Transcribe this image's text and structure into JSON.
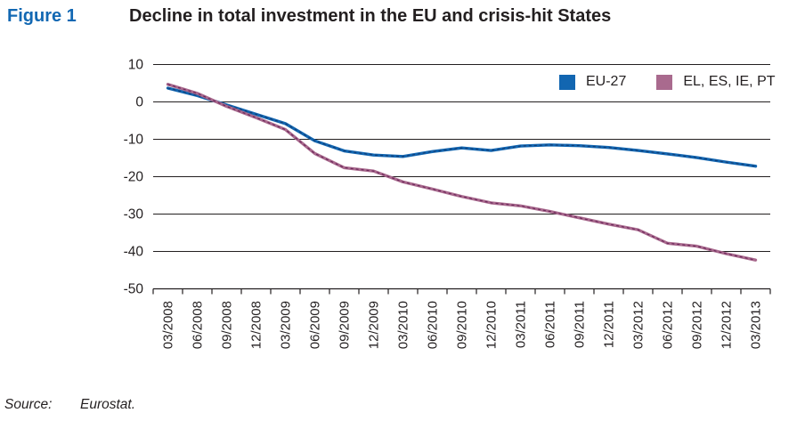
{
  "header": {
    "figure_label": "Figure 1",
    "title": "Decline in total investment in the EU and crisis-hit States"
  },
  "source": {
    "label": "Source:",
    "text": "Eurostat."
  },
  "colors": {
    "figure_label_blue": "#1268b3",
    "text": "#231f20",
    "axis": "#231f20"
  },
  "chart_data": {
    "type": "line",
    "title": "Decline in total investment in the EU and crisis-hit States",
    "xlabel": "",
    "ylabel": "",
    "ylim": [
      -50,
      10
    ],
    "yticks": [
      10,
      0,
      -10,
      -20,
      -30,
      -40,
      -50
    ],
    "grid": true,
    "legend_position": "top-right",
    "categories": [
      "03/2008",
      "06/2008",
      "09/2008",
      "12/2008",
      "03/2009",
      "06/2009",
      "09/2009",
      "12/2009",
      "03/2010",
      "06/2010",
      "09/2010",
      "12/2010",
      "03/2011",
      "06/2011",
      "09/2011",
      "12/2011",
      "03/2012",
      "06/2012",
      "09/2012",
      "12/2012",
      "03/2013"
    ],
    "series": [
      {
        "name": "EU-27",
        "color": "#1266b1",
        "core_color": "#123f78",
        "values": [
          3.7,
          1.7,
          -0.8,
          -3.3,
          -5.8,
          -10.4,
          -13.1,
          -14.2,
          -14.6,
          -13.3,
          -12.3,
          -13.0,
          -11.8,
          -11.5,
          -11.7,
          -12.2,
          -13.0,
          -13.9,
          -14.9,
          -16.1,
          -17.2
        ]
      },
      {
        "name": "EL, ES, IE, PT",
        "color": "#a96a8e",
        "core_color": "#6e2a5c",
        "values": [
          4.7,
          2.3,
          -1.2,
          -4.2,
          -7.4,
          -13.8,
          -17.6,
          -18.5,
          -21.4,
          -23.3,
          -25.3,
          -27.0,
          -27.8,
          -29.3,
          -31.0,
          -32.7,
          -34.2,
          -37.8,
          -38.6,
          -40.6,
          -42.3
        ]
      }
    ]
  }
}
